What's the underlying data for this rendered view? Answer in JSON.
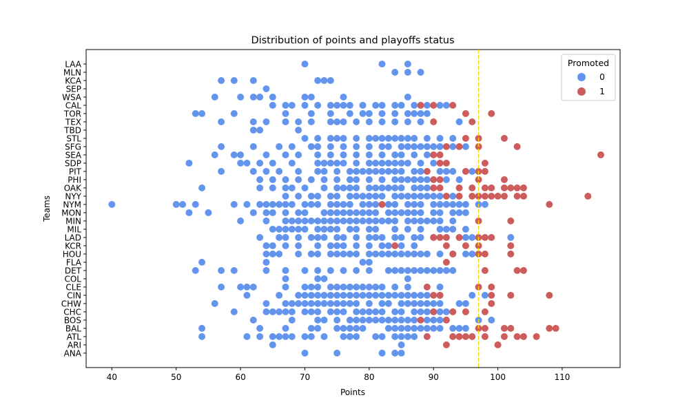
{
  "chart_data": {
    "type": "scatter",
    "title": "Distribution of points and playoffs status",
    "xlabel": "Points",
    "ylabel": "Teams",
    "xlim": [
      36,
      119
    ],
    "x_ticks": [
      40,
      50,
      60,
      70,
      80,
      90,
      100,
      110
    ],
    "categories": [
      "ANA",
      "ARI",
      "ATL",
      "BAL",
      "BOS",
      "CHC",
      "CHW",
      "CIN",
      "CLE",
      "COL",
      "DET",
      "FLA",
      "HOU",
      "KCR",
      "LAD",
      "MIL",
      "MIN",
      "MON",
      "NYM",
      "NYY",
      "OAK",
      "PHI",
      "PIT",
      "SDP",
      "SEA",
      "SFG",
      "STL",
      "TBD",
      "TEX",
      "TOR",
      "CAL",
      "WSA",
      "SEP",
      "KCA",
      "MLN",
      "LAA"
    ],
    "threshold": 97,
    "threshold_color": "#ffd700",
    "grid": false,
    "legend": {
      "title": "Promoted",
      "placement": "top-right"
    },
    "series": [
      {
        "name": "0",
        "color": "#6495ed",
        "points": {
          "ANA": [
            70,
            75,
            82,
            84,
            85
          ],
          "ARI": [
            65,
            85
          ],
          "ATL": [
            54,
            61,
            63,
            65,
            66,
            67,
            68,
            70,
            71,
            73,
            76,
            77,
            78,
            81,
            82,
            84,
            85,
            86,
            87
          ],
          "BAL": [
            54,
            63,
            67,
            71,
            72,
            75,
            76,
            77,
            78,
            79,
            83,
            84,
            85,
            86,
            87,
            88,
            89,
            90,
            91,
            93,
            94,
            95
          ],
          "BOS": [
            62,
            68,
            72,
            73,
            75,
            77,
            78,
            79,
            80,
            81,
            82,
            83,
            84,
            85,
            86,
            87,
            89,
            90,
            91,
            92,
            97,
            99
          ],
          "CHC": [
            59,
            64,
            65,
            66,
            67,
            68,
            70,
            71,
            72,
            74,
            75,
            76,
            78,
            79,
            80,
            81,
            82,
            84,
            85,
            87,
            88,
            89,
            90,
            91,
            92
          ],
          "CHW": [
            56,
            64,
            67,
            68,
            69,
            70,
            71,
            72,
            73,
            74,
            75,
            76,
            77,
            78,
            80,
            82,
            83,
            85,
            86,
            87,
            88,
            89,
            90,
            91,
            94,
            95
          ],
          "CIN": [
            61,
            66,
            69,
            70,
            71,
            72,
            73,
            74,
            75,
            76,
            77,
            78,
            79,
            80,
            81,
            82,
            83,
            84,
            85,
            86,
            87,
            88,
            89,
            91,
            96,
            98
          ],
          "CLE": [
            57,
            60,
            61,
            62,
            67,
            70,
            71,
            72,
            74,
            75,
            76,
            77,
            78,
            79,
            80,
            81,
            82,
            84,
            86,
            91
          ],
          "COL": [
            67,
            72,
            73,
            86
          ],
          "DET": [
            53,
            57,
            59,
            64,
            67,
            70,
            72,
            74,
            76,
            78,
            80,
            83,
            84,
            85,
            86,
            87,
            88,
            89,
            90,
            91,
            92,
            93
          ],
          "FLA": [
            54,
            64,
            79,
            80
          ],
          "HOU": [
            64,
            65,
            66,
            69,
            71,
            72,
            74,
            75,
            76,
            77,
            78,
            80,
            81,
            82,
            83,
            84,
            85,
            86,
            87,
            88,
            89,
            91,
            93,
            95,
            96
          ],
          "KCR": [
            64,
            65,
            67,
            69,
            72,
            74,
            75,
            76,
            78,
            80,
            82,
            83,
            85,
            87
          ],
          "LAD": [
            63,
            66,
            67,
            69,
            71,
            72,
            73,
            75,
            76,
            78,
            80,
            81,
            82,
            84,
            85,
            87,
            88,
            90,
            94,
            95,
            96,
            102
          ],
          "MIL": [
            65,
            66,
            67,
            68,
            69,
            70,
            72,
            73,
            74,
            75,
            77,
            78,
            80,
            81,
            84,
            86,
            88,
            91,
            92,
            93,
            95
          ],
          "MIN": [
            60,
            64,
            67,
            68,
            69,
            70,
            71,
            72,
            73,
            74,
            75,
            76,
            77,
            78,
            79,
            80,
            81,
            82,
            83,
            84,
            86,
            87,
            88,
            89,
            90,
            91,
            93
          ],
          "MON": [
            52,
            55,
            62,
            64,
            65,
            67,
            69,
            70,
            73,
            74,
            75,
            76,
            77,
            78,
            79,
            80,
            81,
            83,
            84,
            85,
            86,
            87,
            88,
            90,
            91,
            93,
            94,
            95
          ],
          "NYM": [
            40,
            50,
            51,
            53,
            59,
            61,
            63,
            64,
            65,
            66,
            67,
            68,
            70,
            71,
            72,
            74,
            75,
            76,
            77,
            79,
            80,
            81,
            83,
            84,
            86,
            87,
            88,
            90,
            91,
            92,
            93,
            94,
            95,
            97,
            98
          ],
          "NYY": [
            67,
            69,
            71,
            72,
            74,
            75,
            77,
            78,
            79,
            80,
            81,
            82,
            84,
            85,
            86,
            87,
            88,
            89,
            90,
            91,
            93
          ],
          "OAK": [
            54,
            63,
            65,
            67,
            68,
            70,
            73,
            75,
            76,
            77,
            78,
            80,
            81,
            82,
            83,
            84,
            85,
            87,
            88,
            89
          ],
          "PHI": [
            63,
            65,
            67,
            69,
            71,
            73,
            75,
            77,
            78,
            80,
            82,
            84,
            85,
            86,
            87,
            88,
            89,
            92,
            94
          ],
          "PIT": [
            57,
            62,
            64,
            66,
            69,
            72,
            73,
            75,
            77,
            78,
            79,
            80,
            81,
            82,
            83,
            84,
            85,
            87,
            88,
            91,
            92,
            93,
            96
          ],
          "SDP": [
            52,
            60,
            61,
            63,
            65,
            68,
            72,
            73,
            74,
            75,
            76,
            78,
            80,
            81,
            82,
            83,
            84,
            85,
            86,
            88,
            90
          ],
          "SEA": [
            56,
            59,
            60,
            64,
            67,
            69,
            72,
            74,
            76,
            78,
            80,
            82,
            84,
            85,
            87,
            89
          ],
          "SFG": [
            57,
            62,
            66,
            68,
            71,
            72,
            74,
            76,
            78,
            80,
            82,
            83,
            85,
            86,
            87,
            88,
            89,
            90,
            91,
            93,
            95
          ],
          "STL": [
            70,
            72,
            74,
            75,
            76,
            78,
            80,
            81,
            82,
            83,
            84,
            85,
            86,
            87,
            89,
            91,
            93
          ],
          "TBD": [
            62,
            63,
            69
          ],
          "TEX": [
            57,
            62,
            64,
            67,
            69,
            71,
            74,
            75,
            76,
            78,
            80,
            82,
            84,
            86,
            88,
            94
          ],
          "TOR": [
            53,
            54,
            59,
            67,
            71,
            74,
            77,
            79,
            80,
            82,
            84,
            86,
            87,
            88,
            89
          ],
          "CAL": [
            65,
            67,
            68,
            70,
            72,
            74,
            75,
            76,
            77,
            79,
            81,
            82,
            84,
            85,
            87,
            88,
            89,
            91,
            92
          ],
          "WSA": [
            56,
            60,
            62,
            63,
            65,
            70,
            71,
            76,
            86
          ],
          "SEP": [
            64
          ],
          "KCA": [
            57,
            59,
            62,
            72,
            73,
            74
          ],
          "MLN": [
            84,
            86,
            88
          ],
          "LAA": [
            70,
            82,
            86
          ]
        }
      },
      {
        "name": "1",
        "color": "#cd5c5c",
        "points": {
          "ANA": [],
          "ARI": [
            92,
            100
          ],
          "ATL": [
            89,
            93,
            94,
            95,
            96,
            98,
            101,
            103,
            104,
            106
          ],
          "BAL": [
            97,
            98,
            101,
            102,
            108,
            109
          ],
          "BOS": [
            88,
            92
          ],
          "CHC": [
            90,
            93,
            95,
            98
          ],
          "CHW": [
            99
          ],
          "CIN": [
            90,
            91,
            99,
            102,
            108
          ],
          "CLE": [
            89,
            97,
            99
          ],
          "COL": [],
          "DET": [
            98,
            103,
            104
          ],
          "FLA": [
            92
          ],
          "HOU": [
            93,
            97,
            98,
            102
          ],
          "KCR": [
            84,
            92,
            95,
            97,
            102
          ],
          "LAD": [
            90,
            91,
            92,
            94,
            97,
            98,
            99
          ],
          "MIL": [],
          "MIN": [
            97,
            102
          ],
          "MON": [],
          "NYM": [
            82,
            108
          ],
          "NYY": [
            92,
            94,
            96,
            97,
            98,
            99,
            100,
            101,
            103,
            104,
            114
          ],
          "OAK": [
            90,
            91,
            94,
            96,
            98,
            99,
            101,
            102,
            103,
            104
          ],
          "PHI": [
            90,
            91,
            97,
            101
          ],
          "PIT": [
            89,
            95,
            97,
            98
          ],
          "SDP": [
            91,
            92,
            98
          ],
          "SEA": [
            90,
            91,
            116
          ],
          "SFG": [
            92,
            94,
            97,
            103
          ],
          "STL": [
            95,
            97,
            101
          ],
          "TBD": [],
          "TEX": [
            90,
            96
          ],
          "TOR": [
            95,
            99
          ],
          "CAL": [
            88,
            90,
            93
          ],
          "WSA": [],
          "SEP": [],
          "KCA": [],
          "MLN": [],
          "LAA": []
        }
      }
    ]
  }
}
